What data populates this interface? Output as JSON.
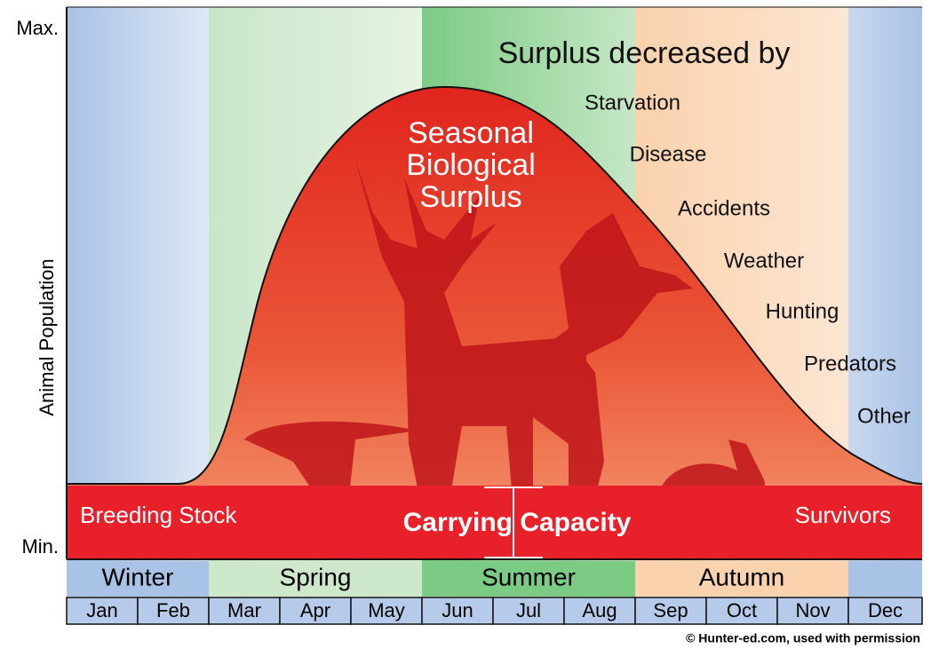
{
  "axis": {
    "max": "Max.",
    "min": "Min.",
    "label": "Animal Population"
  },
  "surplus": {
    "lines": [
      "Seasonal",
      "Biological",
      "Surplus"
    ]
  },
  "decrease": {
    "title": "Surplus decreased by",
    "factors": [
      "Starvation",
      "Disease",
      "Accidents",
      "Weather",
      "Hunting",
      "Predators",
      "Other"
    ]
  },
  "band": {
    "left": "Breeding Stock",
    "center": "Carrying Capacity",
    "right": "Survivors"
  },
  "seasons": [
    "Winter",
    "Spring",
    "Summer",
    "Autumn"
  ],
  "months": [
    "Jan",
    "Feb",
    "Mar",
    "Apr",
    "May",
    "Jun",
    "Jul",
    "Aug",
    "Sep",
    "Oct",
    "Nov",
    "Dec"
  ],
  "credit": "© Hunter-ed.com, used with permission"
}
